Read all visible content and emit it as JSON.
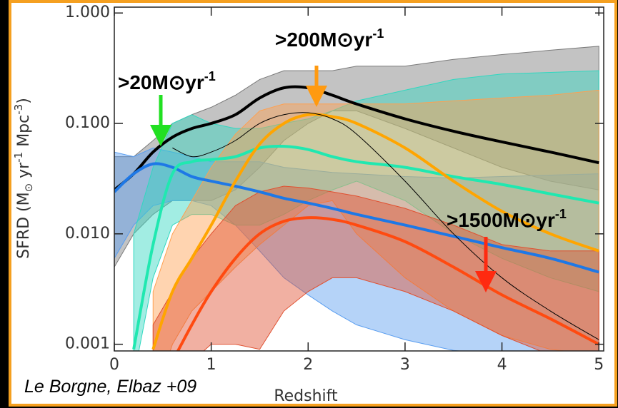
{
  "chart_data": {
    "type": "line",
    "ylabel": [
      "SFRD (M",
      "⊙",
      " yr",
      "-1",
      " Mpc",
      "-3",
      ")"
    ],
    "xlabel": "Redshift",
    "citation": "Le Borgne, Elbaz +09",
    "ylog": true,
    "xlim": [
      0,
      5.05
    ],
    "ylim": [
      0.00087,
      1.13
    ],
    "xticks": [
      0,
      1,
      2,
      3,
      4,
      5
    ],
    "yticks": [
      {
        "value": 0.001,
        "label": "0.001"
      },
      {
        "value": 0.01,
        "label": "0.010"
      },
      {
        "value": 0.1,
        "label": "0.100"
      },
      {
        "value": 1,
        "label": "1.000"
      }
    ],
    "x": [
      0,
      0.2,
      0.4,
      0.6,
      0.8,
      1,
      1.25,
      1.5,
      1.75,
      2,
      2.25,
      2.5,
      3,
      3.5,
      4,
      4.5,
      5
    ],
    "series": [
      {
        "color": "#000000",
        "band_color": "#7a7a7a",
        "width": 4,
        "values": [
          0.025,
          0.035,
          0.055,
          0.075,
          0.09,
          0.1,
          0.12,
          0.17,
          0.21,
          0.21,
          0.18,
          0.15,
          0.11,
          0.085,
          0.068,
          0.055,
          0.044
        ],
        "upper": [
          0.05,
          0.05,
          0.07,
          0.1,
          0.12,
          0.14,
          0.18,
          0.25,
          0.3,
          0.3,
          0.3,
          0.33,
          0.33,
          0.38,
          0.42,
          0.46,
          0.5
        ],
        "lower": [
          0.005,
          0.01,
          0.015,
          0.02,
          0.02,
          0.02,
          0.025,
          0.04,
          0.07,
          0.1,
          0.13,
          0.13,
          0.09,
          0.06,
          0.04,
          0.03,
          0.025
        ]
      },
      {
        "color": "#1e78e6",
        "band_color": "#5a9ef0",
        "width": 4,
        "values": [
          0.024,
          0.035,
          0.043,
          0.04,
          0.033,
          0.03,
          0.027,
          0.024,
          0.021,
          0.019,
          0.017,
          0.015,
          0.012,
          0.0095,
          0.0075,
          0.006,
          0.0045
        ],
        "upper": [
          0.055,
          0.05,
          0.06,
          0.055,
          0.05,
          0.045,
          0.045,
          0.045,
          0.04,
          0.038,
          0.036,
          0.035,
          0.033,
          0.032,
          0.033,
          0.034,
          0.035
        ],
        "lower": [
          0.006,
          0.012,
          0.018,
          0.02,
          0.02,
          0.018,
          0.012,
          0.007,
          0.004,
          0.0028,
          0.002,
          0.0015,
          0.0011,
          0.00088,
          0.0008,
          0.0007,
          0.0006
        ]
      },
      {
        "color": "#20e8b0",
        "band_color": "#30d8c0",
        "width": 4,
        "values": [
          null,
          0.0009,
          0.008,
          0.035,
          0.045,
          0.047,
          0.05,
          0.06,
          0.062,
          0.058,
          0.05,
          0.045,
          0.04,
          0.033,
          0.028,
          0.023,
          0.019
        ],
        "upper": [
          null,
          0.01,
          0.04,
          0.1,
          0.12,
          0.1,
          0.09,
          0.09,
          0.1,
          0.11,
          0.13,
          0.16,
          0.2,
          0.25,
          0.28,
          0.29,
          0.3
        ],
        "lower": [
          null,
          0.0005,
          0.004,
          0.012,
          0.015,
          0.015,
          0.012,
          0.012,
          0.015,
          0.02,
          0.025,
          0.03,
          0.02,
          0.01,
          0.006,
          0.004,
          0.003
        ]
      },
      {
        "color": "#ffa500",
        "band_color": "#ffa050",
        "width": 4,
        "values": [
          null,
          null,
          0.0009,
          0.003,
          0.006,
          0.012,
          0.03,
          0.065,
          0.1,
          0.12,
          0.115,
          0.1,
          0.06,
          0.03,
          0.016,
          0.01,
          0.007
        ],
        "upper": [
          null,
          null,
          0.003,
          0.01,
          0.02,
          0.04,
          0.08,
          0.13,
          0.15,
          0.15,
          0.15,
          0.15,
          0.15,
          0.16,
          0.17,
          0.18,
          0.2
        ],
        "lower": [
          null,
          null,
          0.0003,
          0.001,
          0.002,
          0.003,
          0.005,
          0.008,
          0.012,
          0.018,
          0.02,
          0.01,
          0.004,
          0.002,
          0.0012,
          0.0009,
          0.0008
        ]
      },
      {
        "color": "#ff4a10",
        "band_color": "#e05030",
        "width": 4,
        "values": [
          null,
          null,
          null,
          0.0007,
          0.0015,
          0.003,
          0.006,
          0.01,
          0.013,
          0.014,
          0.0135,
          0.012,
          0.0085,
          0.005,
          0.0028,
          0.0017,
          0.001
        ],
        "upper": [
          null,
          null,
          0.0015,
          0.003,
          0.006,
          0.01,
          0.018,
          0.024,
          0.027,
          0.026,
          0.024,
          0.022,
          0.017,
          0.012,
          0.008,
          0.007,
          0.007
        ],
        "lower": [
          null,
          null,
          0.0003,
          0.0005,
          0.0007,
          0.001,
          0.001,
          0.0009,
          0.002,
          0.003,
          0.004,
          0.004,
          0.003,
          0.002,
          0.0012,
          0.0008,
          0.0006
        ]
      },
      {
        "color": "#000000",
        "width": 1,
        "values": [
          null,
          null,
          null,
          0.06,
          0.05,
          0.055,
          0.07,
          0.1,
          0.12,
          0.125,
          0.11,
          0.08,
          0.03,
          0.01,
          0.004,
          0.002,
          0.0011
        ]
      }
    ],
    "annotations": [
      {
        "text": ">20M⊙yr",
        "sup": "-1",
        "color": "#22e022"
      },
      {
        "text": ">200M⊙yr",
        "sup": "-1",
        "color": "#ff9a10"
      },
      {
        "text": ">1500M⊙yr",
        "sup": "-1",
        "color": "#ff2a10"
      }
    ]
  }
}
